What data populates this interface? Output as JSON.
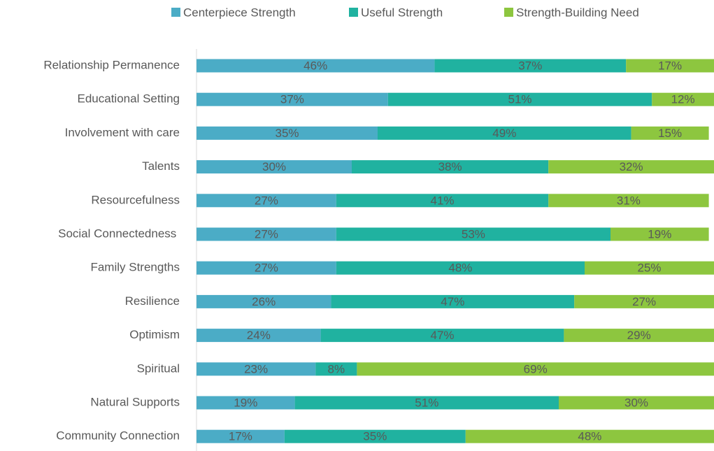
{
  "chart_data": {
    "type": "stacked_barh",
    "categories": [
      "Relationship Permanence",
      "Educational Setting",
      "Involvement with care",
      "Talents",
      "Resourcefulness",
      "Social Connectedness ",
      "Family Strengths",
      "Resilience",
      "Optimism",
      "Spiritual",
      "Natural Supports",
      "Community Connection"
    ],
    "series": [
      {
        "name": "Centerpiece Strength",
        "color": "#4bacc6",
        "values": [
          46,
          37,
          35,
          30,
          27,
          27,
          27,
          26,
          24,
          23,
          19,
          17
        ],
        "value_labels": [
          "46%",
          "37%",
          "35%",
          "30%",
          "27%",
          "27%",
          "27%",
          "26%",
          "24%",
          "23%",
          "19%",
          "17%"
        ]
      },
      {
        "name": "Useful Strength",
        "color": "#20b2a0",
        "values": [
          37,
          51,
          49,
          38,
          41,
          53,
          48,
          47,
          47,
          8,
          51,
          35
        ],
        "value_labels": [
          "37%",
          "51%",
          "49%",
          "38%",
          "41%",
          "53%",
          "48%",
          "47%",
          "47%",
          "8%",
          "51%",
          "35%"
        ]
      },
      {
        "name": "Strength-Building Need",
        "color": "#8dc63f",
        "values": [
          17,
          12,
          15,
          32,
          31,
          19,
          25,
          27,
          29,
          69,
          30,
          48
        ],
        "value_labels": [
          "17%",
          "12%",
          "15%",
          "32%",
          "31%",
          "19%",
          "25%",
          "27%",
          "29%",
          "69%",
          "30%",
          "48%"
        ]
      }
    ],
    "xlim": [
      0,
      100
    ],
    "legend": "top"
  }
}
